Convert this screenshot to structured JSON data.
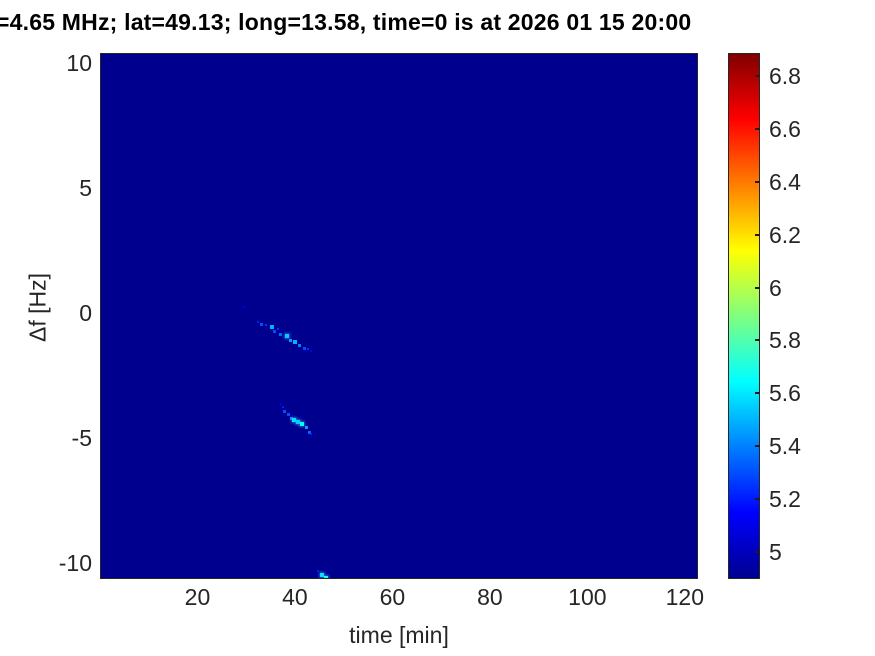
{
  "figure_title": "=4.65 MHz;  lat=49.13; long=13.58, time=0 is at 2026 01 15 20:00",
  "colors": {
    "page_background": "#ffffff",
    "plot_background_min_value": "#00008f",
    "axis_text": "#262626",
    "title_text": "#000000"
  },
  "chart_data": {
    "type": "heatmap",
    "title": "=4.65 MHz;  lat=49.13; long=13.58, time=0 is at 2026 01 15 20:00",
    "xlabel": "time [min]",
    "ylabel": "Δf [Hz]",
    "xlim": [
      0,
      122.7
    ],
    "ylim": [
      -10.64,
      10.4
    ],
    "x_ticks": [
      20,
      40,
      60,
      80,
      100,
      120
    ],
    "y_ticks": [
      10,
      5,
      0,
      -5,
      -10
    ],
    "grid": false,
    "colorbar": {
      "position": "right",
      "colormap": "jet",
      "range": [
        4.897,
        6.888
      ],
      "ticks": [
        5,
        5.2,
        5.4,
        5.6,
        5.8,
        6,
        6.2,
        6.4,
        6.6,
        6.8
      ]
    },
    "background_note": "uniform minimum-value field; only three faint doppler traces visible",
    "series": [
      {
        "name": "doppler-trace-1",
        "points": [
          {
            "t": 29.3,
            "df": 0.28,
            "v": 5.05
          },
          {
            "t": 32.2,
            "df": -0.32,
            "v": 5.2
          },
          {
            "t": 33.0,
            "df": -0.4,
            "v": 5.3
          },
          {
            "t": 33.8,
            "df": -0.44,
            "v": 5.25
          },
          {
            "t": 35.1,
            "df": -0.52,
            "v": 5.5
          },
          {
            "t": 35.7,
            "df": -0.68,
            "v": 5.3
          },
          {
            "t": 36.3,
            "df": -0.6,
            "v": 5.25
          },
          {
            "t": 36.9,
            "df": -0.8,
            "v": 5.35
          },
          {
            "t": 38.2,
            "df": -0.88,
            "v": 5.55
          },
          {
            "t": 38.8,
            "df": -1.04,
            "v": 5.45
          },
          {
            "t": 39.8,
            "df": -1.12,
            "v": 5.5
          },
          {
            "t": 40.8,
            "df": -1.24,
            "v": 5.4
          },
          {
            "t": 41.8,
            "df": -1.36,
            "v": 5.3
          },
          {
            "t": 42.5,
            "df": -1.4,
            "v": 5.25
          },
          {
            "t": 43.1,
            "df": -1.48,
            "v": 5.15
          }
        ]
      },
      {
        "name": "doppler-trace-2",
        "points": [
          {
            "t": 36.9,
            "df": -3.6,
            "v": 5.1
          },
          {
            "t": 37.3,
            "df": -3.72,
            "v": 5.2
          },
          {
            "t": 37.7,
            "df": -3.88,
            "v": 5.3
          },
          {
            "t": 38.4,
            "df": -4.0,
            "v": 5.3
          },
          {
            "t": 39.0,
            "df": -4.16,
            "v": 5.4
          },
          {
            "t": 39.6,
            "df": -4.24,
            "v": 5.6
          },
          {
            "t": 40.4,
            "df": -4.32,
            "v": 5.55
          },
          {
            "t": 41.2,
            "df": -4.4,
            "v": 5.65
          },
          {
            "t": 42.1,
            "df": -4.52,
            "v": 5.45
          },
          {
            "t": 42.7,
            "df": -4.72,
            "v": 5.35
          },
          {
            "t": 43.1,
            "df": -4.8,
            "v": 5.2
          }
        ]
      },
      {
        "name": "doppler-trace-3",
        "points": [
          {
            "t": 44.5,
            "df": -10.28,
            "v": 5.2
          },
          {
            "t": 45.3,
            "df": -10.44,
            "v": 5.6
          },
          {
            "t": 46.2,
            "df": -10.56,
            "v": 5.7
          },
          {
            "t": 47.0,
            "df": -10.6,
            "v": 5.45
          },
          {
            "t": 47.8,
            "df": -10.64,
            "v": 5.3
          }
        ]
      }
    ]
  }
}
